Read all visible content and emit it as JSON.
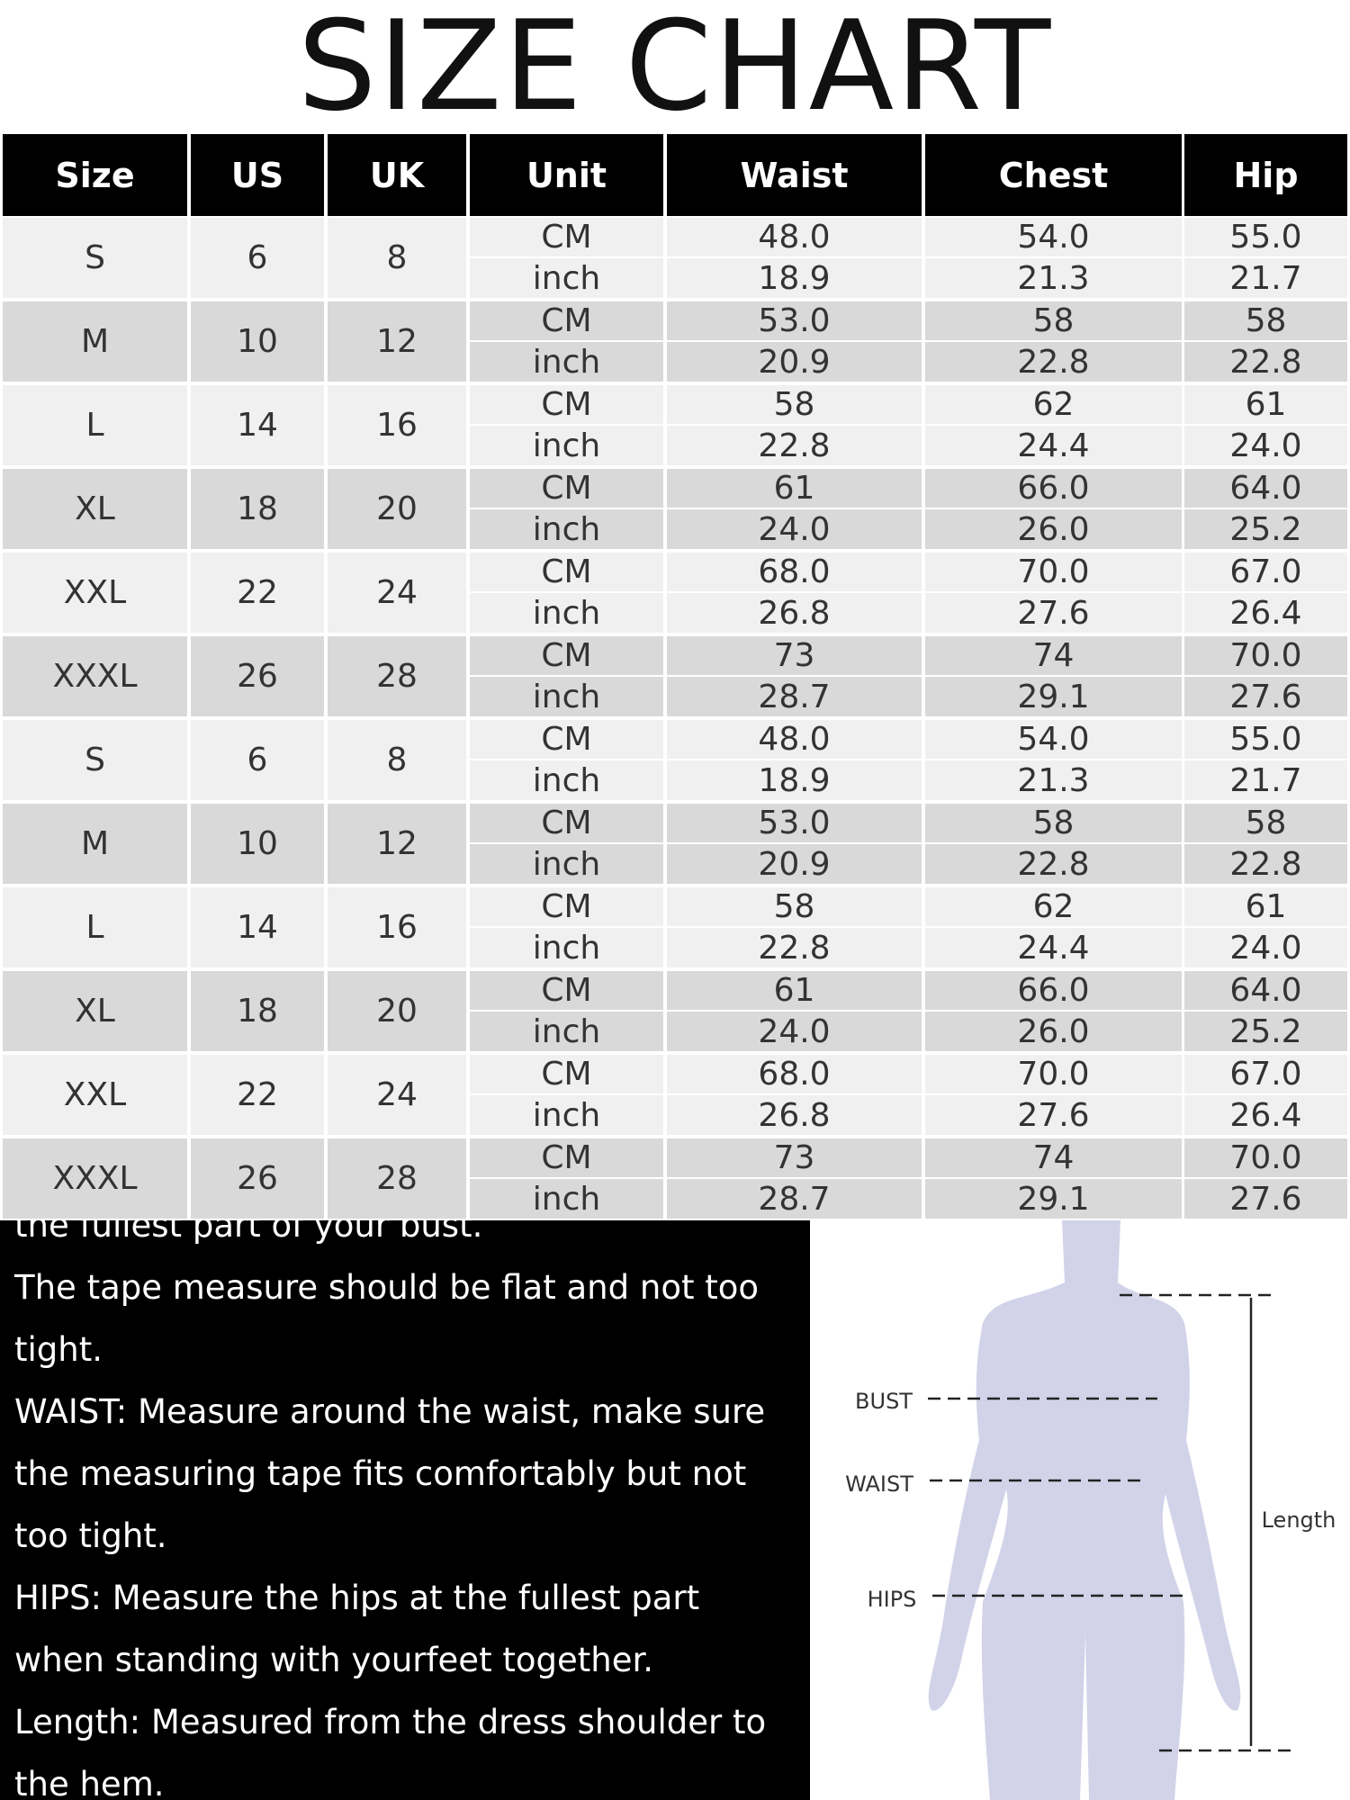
{
  "title": "SIZE CHART",
  "table": {
    "header": [
      "Size",
      "US",
      "UK",
      "Unit",
      "Waist",
      "Chest",
      "Hip"
    ],
    "rows": [
      {
        "size": "S",
        "us": "6",
        "uk": "8",
        "units": [
          {
            "unit": "CM",
            "values": [
              "48.0",
              "54.0",
              "55.0"
            ]
          },
          {
            "unit": "inch",
            "values": [
              "18.9",
              "21.3",
              "21.7"
            ]
          }
        ]
      },
      {
        "size": "M",
        "us": "10",
        "uk": "12",
        "units": [
          {
            "unit": "CM",
            "values": [
              "53.0",
              "58",
              "58"
            ]
          },
          {
            "unit": "inch",
            "values": [
              "20.9",
              "22.8",
              "22.8"
            ]
          }
        ]
      },
      {
        "size": "L",
        "us": "14",
        "uk": "16",
        "units": [
          {
            "unit": "CM",
            "values": [
              "58",
              "62",
              "61"
            ]
          },
          {
            "unit": "inch",
            "values": [
              "22.8",
              "24.4",
              "24.0"
            ]
          }
        ]
      },
      {
        "size": "XL",
        "us": "18",
        "uk": "20",
        "units": [
          {
            "unit": "CM",
            "values": [
              "61",
              "66.0",
              "64.0"
            ]
          },
          {
            "unit": "inch",
            "values": [
              "24.0",
              "26.0",
              "25.2"
            ]
          }
        ]
      },
      {
        "size": "XXL",
        "us": "22",
        "uk": "24",
        "units": [
          {
            "unit": "CM",
            "values": [
              "68.0",
              "70.0",
              "67.0"
            ]
          },
          {
            "unit": "inch",
            "values": [
              "26.8",
              "27.6",
              "26.4"
            ]
          }
        ]
      },
      {
        "size": "XXXL",
        "us": "26",
        "uk": "28",
        "units": [
          {
            "unit": "CM",
            "values": [
              "73",
              "74",
              "70.0"
            ]
          },
          {
            "unit": "inch",
            "values": [
              "28.7",
              "29.1",
              "27.6"
            ]
          }
        ]
      },
      {
        "size": "S",
        "us": "6",
        "uk": "8",
        "units": [
          {
            "unit": "CM",
            "values": [
              "48.0",
              "54.0",
              "55.0"
            ]
          },
          {
            "unit": "inch",
            "values": [
              "18.9",
              "21.3",
              "21.7"
            ]
          }
        ]
      },
      {
        "size": "M",
        "us": "10",
        "uk": "12",
        "units": [
          {
            "unit": "CM",
            "values": [
              "53.0",
              "58",
              "58"
            ]
          },
          {
            "unit": "inch",
            "values": [
              "20.9",
              "22.8",
              "22.8"
            ]
          }
        ]
      },
      {
        "size": "L",
        "us": "14",
        "uk": "16",
        "units": [
          {
            "unit": "CM",
            "values": [
              "58",
              "62",
              "61"
            ]
          },
          {
            "unit": "inch",
            "values": [
              "22.8",
              "24.4",
              "24.0"
            ]
          }
        ]
      },
      {
        "size": "XL",
        "us": "18",
        "uk": "20",
        "units": [
          {
            "unit": "CM",
            "values": [
              "61",
              "66.0",
              "64.0"
            ]
          },
          {
            "unit": "inch",
            "values": [
              "24.0",
              "26.0",
              "25.2"
            ]
          }
        ]
      },
      {
        "size": "XXL",
        "us": "22",
        "uk": "24",
        "units": [
          {
            "unit": "CM",
            "values": [
              "68.0",
              "70.0",
              "67.0"
            ]
          },
          {
            "unit": "inch",
            "values": [
              "26.8",
              "27.6",
              "26.4"
            ]
          }
        ]
      },
      {
        "size": "XXXL",
        "us": "26",
        "uk": "28",
        "units": [
          {
            "unit": "CM",
            "values": [
              "73",
              "74",
              "70.0"
            ]
          },
          {
            "unit": "inch",
            "values": [
              "28.7",
              "29.1",
              "27.6"
            ]
          }
        ]
      }
    ]
  },
  "instructions": [
    "the fullest part of your bust.",
    "The tape measure should be flat and not too",
    "tight.",
    "WAIST: Measure around the waist, make sure",
    "the measuring tape fits comfortably but not",
    "too tight.",
    "HIPS: Measure the hips at the fullest part",
    "when standing with yourfeet together.",
    "Length: Measured from the dress shoulder to",
    "the hem."
  ],
  "figure": {
    "bust": "BUST",
    "waist": "WAIST",
    "hips": "HIPS",
    "length": "Length"
  }
}
